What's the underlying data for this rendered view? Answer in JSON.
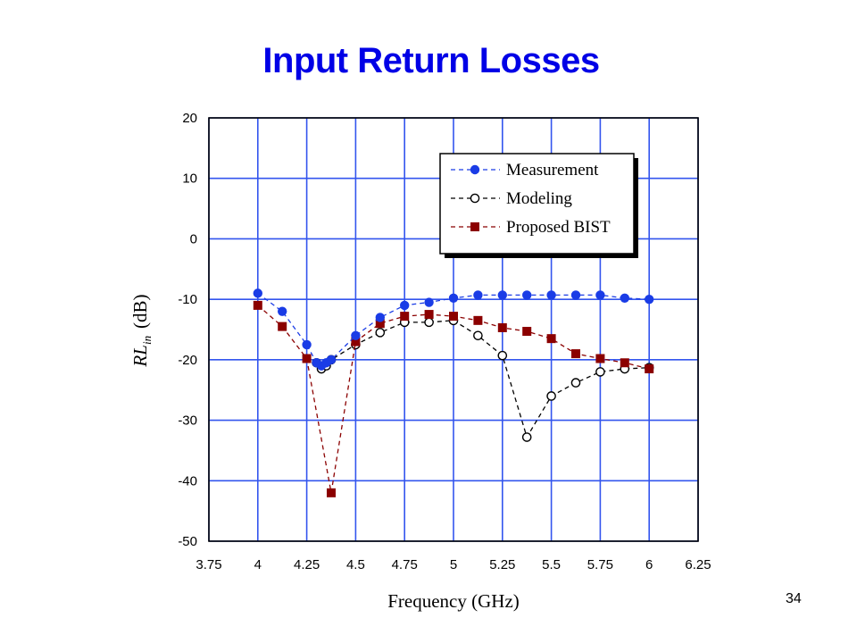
{
  "slide": {
    "title": "Input Return Losses",
    "title_color": "#0000e6",
    "page_number": "34"
  },
  "chart_data": {
    "type": "line",
    "xlabel": "Frequency (GHz)",
    "ylabel_main": "RL",
    "ylabel_sub": "in",
    "ylabel_unit": "(dB)",
    "xlim": [
      3.75,
      6.25
    ],
    "ylim": [
      -50,
      20
    ],
    "x_ticks": [
      3.75,
      4,
      4.25,
      4.5,
      4.75,
      5,
      5.25,
      5.5,
      5.75,
      6,
      6.25
    ],
    "x_tick_labels": [
      "3.75",
      "4",
      "4.25",
      "4.5",
      "4.75",
      "5",
      "5.25",
      "5.5",
      "5.75",
      "6",
      "6.25"
    ],
    "y_ticks": [
      20,
      10,
      0,
      -10,
      -20,
      -30,
      -40,
      -50
    ],
    "y_tick_labels": [
      "20",
      "10",
      "0",
      "-10",
      "-20",
      "-30",
      "-40",
      "-50"
    ],
    "grid": true,
    "grid_color": "#3355ee",
    "legend_position": "top-right",
    "series": [
      {
        "name": "Measurement",
        "color": "#1a3ce6",
        "marker": "filled-circle",
        "line": "dashed",
        "x": [
          4.0,
          4.125,
          4.25,
          4.3,
          4.325,
          4.35,
          4.375,
          4.5,
          4.625,
          4.75,
          4.875,
          5.0,
          5.125,
          5.25,
          5.375,
          5.5,
          5.625,
          5.75,
          5.875,
          6.0
        ],
        "y": [
          -9,
          -12,
          -17.5,
          -20.5,
          -21,
          -20.5,
          -20,
          -16,
          -13,
          -11,
          -10.5,
          -9.8,
          -9.3,
          -9.3,
          -9.3,
          -9.3,
          -9.3,
          -9.3,
          -9.8,
          -10
        ]
      },
      {
        "name": "Modeling",
        "color": "#000000",
        "marker": "open-circle",
        "line": "dashed",
        "x": [
          4.3,
          4.325,
          4.35,
          4.375,
          4.5,
          4.625,
          4.75,
          4.875,
          5.0,
          5.125,
          5.25,
          5.375,
          5.5,
          5.625,
          5.75,
          5.875,
          6.0
        ],
        "y": [
          -20.5,
          -21.5,
          -21,
          -20,
          -17.5,
          -15.5,
          -13.8,
          -13.8,
          -13.5,
          -16,
          -19.3,
          -32.8,
          -26,
          -23.8,
          -22,
          -21.5,
          -21.3
        ]
      },
      {
        "name": "Proposed BIST",
        "color": "#8b0000",
        "marker": "filled-square",
        "line": "dashed",
        "x": [
          4.0,
          4.125,
          4.25,
          4.375,
          4.5,
          4.625,
          4.75,
          4.875,
          5.0,
          5.125,
          5.25,
          5.375,
          5.5,
          5.625,
          5.75,
          5.875,
          6.0
        ],
        "y": [
          -11,
          -14.5,
          -19.8,
          -42,
          -17,
          -14,
          -12.8,
          -12.5,
          -12.8,
          -13.5,
          -14.7,
          -15.3,
          -16.5,
          -19,
          -19.8,
          -20.5,
          -21.5
        ]
      }
    ]
  }
}
